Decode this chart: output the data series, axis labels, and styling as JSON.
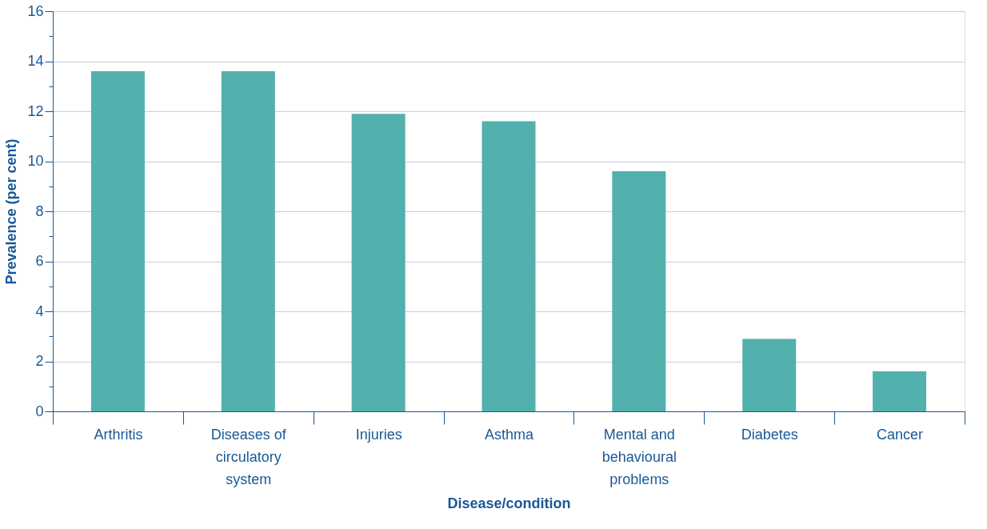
{
  "chart_data": {
    "type": "bar",
    "xlabel": "Disease/condition",
    "ylabel": "Prevalence (per cent)",
    "categories": [
      "Arthritis",
      "Diseases of circulatory system",
      "Injuries",
      "Asthma",
      "Mental and behavioural problems",
      "Diabetes",
      "Cancer"
    ],
    "values": [
      13.6,
      13.6,
      11.9,
      11.6,
      9.6,
      2.9,
      1.6
    ],
    "color": "#52b0ad",
    "ylim": [
      0,
      16
    ],
    "yticks": [
      0,
      {
        "value": 1,
        "label": null
      },
      2,
      {
        "value": 3,
        "label": null
      },
      4,
      {
        "value": 5,
        "label": null
      },
      6,
      {
        "value": 7,
        "label": null
      },
      8,
      {
        "value": 9,
        "label": null
      },
      10,
      {
        "value": 11,
        "label": null
      },
      12,
      {
        "value": 13,
        "label": null
      },
      14,
      {
        "value": 15,
        "label": null
      },
      16
    ],
    "grid": "y"
  }
}
